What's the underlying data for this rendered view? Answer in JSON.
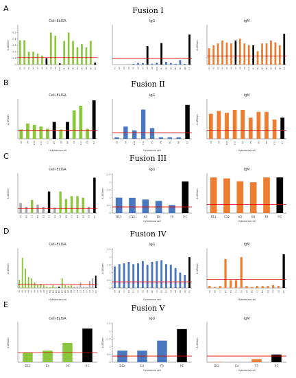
{
  "colors": {
    "green": "#8cc63e",
    "blue": "#4a78c0",
    "orange": "#ed7d31",
    "black": "#000000",
    "gray": "#a6a6a6",
    "cutoff": "#e00000"
  },
  "rows": [
    {
      "letter": "A",
      "title": "Fusion I"
    },
    {
      "letter": "B",
      "title": "Fusion II"
    },
    {
      "letter": "C",
      "title": "Fusion III"
    },
    {
      "letter": "D",
      "title": "Fusion IV"
    },
    {
      "letter": "E",
      "title": "Fusion V"
    }
  ],
  "chart_data": [
    {
      "type": "bar",
      "row": 0,
      "col": 0,
      "title": "Cell-ELISA",
      "xlabel": "",
      "ylabel": "A 490nm",
      "ylim": [
        0,
        0.6
      ],
      "yticks": [
        0,
        0.1,
        0.2,
        0.3,
        0.4,
        0.5
      ],
      "cutoff": 0.11,
      "categories": [
        "A1",
        "A2",
        "A3",
        "A4",
        "A5",
        "A6",
        "A7",
        "A8",
        "A9",
        "A10",
        "B1",
        "B2",
        "B3",
        "B4",
        "B5",
        "B6",
        "B7",
        "P.C"
      ],
      "values": [
        0.38,
        0.38,
        0.2,
        0.2,
        0.17,
        0.14,
        0.1,
        0.5,
        0.45,
        0.02,
        0.37,
        0.5,
        0.37,
        0.27,
        0.32,
        0.27,
        0.37,
        0.03
      ],
      "colors": [
        "green",
        "green",
        "green",
        "green",
        "green",
        "green",
        "black",
        "green",
        "green",
        "black",
        "green",
        "green",
        "green",
        "green",
        "green",
        "green",
        "green",
        "black"
      ]
    },
    {
      "type": "bar",
      "row": 0,
      "col": 1,
      "title": "IgG",
      "xlabel": "",
      "ylabel": "",
      "ylim": [
        0,
        2.5
      ],
      "yticks": [],
      "cutoff": 0.4,
      "categories": [
        "A1",
        "A2",
        "A3",
        "A4",
        "A5",
        "A6",
        "A7",
        "A8",
        "A9",
        "A10",
        "B1",
        "B2",
        "B3",
        "B4",
        "B5",
        "B6",
        "P.C"
      ],
      "values": [
        0,
        0,
        0,
        0.02,
        0.05,
        0.1,
        0.1,
        1.2,
        0.06,
        0.12,
        1.4,
        0.18,
        0.1,
        0.05,
        0.3,
        0.05,
        1.95
      ],
      "colors": [
        "blue",
        "blue",
        "blue",
        "blue",
        "blue",
        "blue",
        "blue",
        "black",
        "blue",
        "blue",
        "black",
        "blue",
        "blue",
        "blue",
        "blue",
        "blue",
        "black"
      ]
    },
    {
      "type": "bar",
      "row": 0,
      "col": 2,
      "title": "IgM",
      "xlabel": "",
      "ylabel": "A 490nm",
      "ylim": [
        0,
        0.4
      ],
      "yticks": [],
      "cutoff": 0.09,
      "categories": [
        "A1",
        "A2",
        "A3",
        "A4",
        "A5",
        "A6",
        "A7",
        "A8",
        "A9",
        "A10",
        "B1",
        "B2",
        "B3",
        "B4",
        "B5",
        "B6",
        "B7",
        "P.C"
      ],
      "values": [
        0.17,
        0.2,
        0.22,
        0.25,
        0.23,
        0.22,
        0.25,
        0.27,
        0.22,
        0.2,
        0.2,
        0.14,
        0.22,
        0.22,
        0.25,
        0.23,
        0.2,
        0.32
      ],
      "colors": [
        "orange",
        "orange",
        "orange",
        "orange",
        "orange",
        "orange",
        "black",
        "orange",
        "orange",
        "orange",
        "black",
        "orange",
        "orange",
        "orange",
        "orange",
        "orange",
        "orange",
        "black"
      ]
    },
    {
      "type": "bar",
      "row": 1,
      "col": 0,
      "title": "Cell-ELISA",
      "xlabel": "Hybridoma cell",
      "ylabel": "A 490nm",
      "ylim": [
        0,
        0.5
      ],
      "yticks": [],
      "cutoff": 0.11,
      "categories": [
        "A6",
        "A9",
        "B10",
        "E11",
        "F1",
        "P.C",
        "A6",
        "B4",
        "C9",
        "E11",
        "F9",
        "P.C"
      ],
      "values": [
        0.12,
        0.2,
        0.18,
        0.16,
        0.13,
        0.22,
        0.12,
        0.22,
        0.37,
        0.43,
        0.13,
        0.52
      ],
      "colors": [
        "green",
        "green",
        "green",
        "green",
        "green",
        "black",
        "green",
        "black",
        "green",
        "green",
        "green",
        "black"
      ]
    },
    {
      "type": "bar",
      "row": 1,
      "col": 1,
      "title": "IgG",
      "xlabel": "Hybridoma cell",
      "ylabel": "",
      "ylim": [
        0,
        2.5
      ],
      "yticks": [],
      "cutoff": 0.4,
      "categories": [
        "A6",
        "A9",
        "B10",
        "E11",
        "F1",
        "F9",
        "H1",
        "H9",
        "P.C"
      ],
      "values": [
        0.1,
        0.8,
        0.55,
        1.9,
        0.7,
        0.1,
        0.1,
        0.1,
        2.2
      ],
      "colors": [
        "blue",
        "blue",
        "blue",
        "blue",
        "blue",
        "blue",
        "blue",
        "blue",
        "black"
      ]
    },
    {
      "type": "bar",
      "row": 1,
      "col": 2,
      "title": "IgM",
      "xlabel": "Hybridoma cell",
      "ylabel": "A 490nm",
      "ylim": [
        0,
        0.4
      ],
      "yticks": [],
      "cutoff": 0.09,
      "categories": [
        "A6",
        "A9",
        "B10",
        "E11",
        "F1",
        "F9",
        "H1",
        "H9",
        "E11",
        "P.C"
      ],
      "values": [
        0.26,
        0.29,
        0.27,
        0.3,
        0.3,
        0.22,
        0.28,
        0.28,
        0.2,
        0.22
      ],
      "colors": [
        "orange",
        "orange",
        "orange",
        "orange",
        "orange",
        "orange",
        "orange",
        "orange",
        "orange",
        "black"
      ]
    },
    {
      "type": "bar",
      "row": 2,
      "col": 0,
      "title": "Cell-ELISA",
      "xlabel": "",
      "ylabel": "A 490nm",
      "ylim": [
        0,
        0.5
      ],
      "yticks": [],
      "cutoff": 0.06,
      "categories": [
        "A1",
        "B1",
        "C1",
        "D1",
        "E1",
        "F1",
        "G1",
        "A2",
        "B2",
        "C2",
        "D2",
        "E2",
        "F2",
        "P.C"
      ],
      "values": [
        0.13,
        0.08,
        0.17,
        0.11,
        0.08,
        0.28,
        0.07,
        0.28,
        0.18,
        0.22,
        0.22,
        0.2,
        0.08,
        0.46
      ],
      "colors": [
        "gray",
        "gray",
        "green",
        "gray",
        "gray",
        "black",
        "gray",
        "green",
        "green",
        "green",
        "green",
        "green",
        "gray",
        "black"
      ]
    },
    {
      "type": "bar",
      "row": 2,
      "col": 1,
      "title": "IgG",
      "xlabel": "Hybridoma cell",
      "ylabel": "A 490nm",
      "ylim": [
        0,
        2.5
      ],
      "yticks": [
        0,
        0.5,
        1,
        1.5,
        2,
        2.5
      ],
      "cutoff": 0.4,
      "categories": [
        "B11",
        "C12",
        "H3",
        "B4",
        "F9",
        "P.C"
      ],
      "values": [
        1.0,
        0.99,
        0.88,
        0.79,
        0.52,
        2.05
      ],
      "colors": [
        "blue",
        "blue",
        "blue",
        "blue",
        "blue",
        "black"
      ]
    },
    {
      "type": "bar",
      "row": 2,
      "col": 2,
      "title": "IgM",
      "xlabel": "Hybridoma cell",
      "ylabel": "A 490nm",
      "ylim": [
        0,
        0.4
      ],
      "yticks": [],
      "cutoff": 0.09,
      "categories": [
        "B11",
        "C12",
        "H3",
        "B4",
        "F9",
        "P.C"
      ],
      "values": [
        0.37,
        0.36,
        0.33,
        0.32,
        0.37,
        0.37
      ],
      "colors": [
        "orange",
        "orange",
        "orange",
        "orange",
        "orange",
        "black"
      ]
    },
    {
      "type": "bar",
      "row": 3,
      "col": 0,
      "title": "Cell-ELISA",
      "xlabel": "Hybridoma cell",
      "ylabel": "A 490nm",
      "ylim": [
        0,
        1.4
      ],
      "yticks": [],
      "cutoff": 0.12,
      "categories": [
        "A1",
        "A2",
        "A3",
        "A4",
        "A5",
        "A6",
        "A7",
        "A8",
        "A9",
        "A10",
        "B1",
        "B2",
        "B3",
        "B4",
        "B5",
        "B6",
        "B7",
        "B8",
        "C1",
        "C2",
        "C3",
        "C4",
        "C5",
        "C6",
        "C7",
        "P.C"
      ],
      "values": [
        0.3,
        1.1,
        0.7,
        0.4,
        0.35,
        0.2,
        0.1,
        0.15,
        0.1,
        0.05,
        0.03,
        0.1,
        0.02,
        0.05,
        0.35,
        0.1,
        0.08,
        0.1,
        0.05,
        0.05,
        0.2,
        0.05,
        0.03,
        0.25,
        0.35,
        0.45
      ],
      "colors": [
        "green",
        "green",
        "green",
        "green",
        "green",
        "green",
        "green",
        "green",
        "green",
        "green",
        "green",
        "green",
        "green",
        "black",
        "green",
        "green",
        "green",
        "green",
        "gray",
        "gray",
        "gray",
        "gray",
        "gray",
        "gray",
        "gray",
        "black"
      ]
    },
    {
      "type": "bar",
      "row": 3,
      "col": 1,
      "title": "IgG",
      "xlabel": "Hybridoma cell",
      "ylabel": "A 490nm",
      "ylim": [
        0,
        2.5
      ],
      "yticks": [
        0,
        0.5,
        1,
        1.5,
        2,
        2.5
      ],
      "cutoff": 0.4,
      "categories": [
        "A1",
        "B1",
        "C1",
        "D1",
        "E1",
        "F1",
        "G1",
        "A2",
        "B2",
        "C2",
        "D2",
        "E2",
        "F2",
        "G2",
        "H2",
        "A3",
        "P.C"
      ],
      "values": [
        1.4,
        1.55,
        1.6,
        1.7,
        1.55,
        1.6,
        1.75,
        1.5,
        1.7,
        1.75,
        1.8,
        1.55,
        1.5,
        1.3,
        1.0,
        0.85,
        2.0
      ],
      "colors": [
        "blue",
        "blue",
        "blue",
        "blue",
        "blue",
        "blue",
        "blue",
        "blue",
        "blue",
        "blue",
        "blue",
        "blue",
        "blue",
        "blue",
        "blue",
        "blue",
        "black"
      ]
    },
    {
      "type": "bar",
      "row": 3,
      "col": 2,
      "title": "IgM",
      "xlabel": "Hybridoma cell",
      "ylabel": "A 490nm",
      "ylim": [
        0,
        0.4
      ],
      "yticks": [],
      "cutoff": 0.09,
      "categories": [
        "A1",
        "B1",
        "C1",
        "D1",
        "E1",
        "F1",
        "G1",
        "A2",
        "B2",
        "C2",
        "D2",
        "E2",
        "F2",
        "G2",
        "P.C"
      ],
      "values": [
        0.02,
        0.01,
        0.02,
        0.3,
        0.08,
        0.08,
        0.32,
        0.02,
        0.01,
        0.02,
        0.02,
        0.02,
        0.03,
        0.02,
        0.35
      ],
      "colors": [
        "orange",
        "orange",
        "orange",
        "orange",
        "orange",
        "orange",
        "orange",
        "orange",
        "orange",
        "orange",
        "orange",
        "orange",
        "orange",
        "orange",
        "black"
      ]
    },
    {
      "type": "bar",
      "row": 4,
      "col": 0,
      "title": "Cell-ELISA",
      "xlabel": "",
      "ylabel": "A 490nm",
      "ylim": [
        0,
        0.8
      ],
      "yticks": [],
      "cutoff": 0.2,
      "categories": [
        "D12",
        "E4",
        "F9",
        "P.C"
      ],
      "values": [
        0.2,
        0.24,
        0.4,
        0.7
      ],
      "colors": [
        "green",
        "green",
        "green",
        "black"
      ]
    },
    {
      "type": "bar",
      "row": 4,
      "col": 1,
      "title": "IgG",
      "xlabel": "Hybridoma cell",
      "ylabel": "A 490nm",
      "ylim": [
        0,
        2.5
      ],
      "yticks": [
        0,
        0.5,
        1,
        1.5,
        2,
        2.5
      ],
      "cutoff": 0.4,
      "categories": [
        "D12",
        "E4",
        "F9",
        "P.C"
      ],
      "values": [
        0.75,
        0.75,
        1.4,
        2.15
      ],
      "colors": [
        "blue",
        "blue",
        "blue",
        "black"
      ]
    },
    {
      "type": "bar",
      "row": 4,
      "col": 2,
      "title": "IgM",
      "xlabel": "Hybridoma cell",
      "ylabel": "A 490nm",
      "ylim": [
        0,
        2.5
      ],
      "yticks": [],
      "cutoff": 0.4,
      "categories": [
        "D12",
        "E4",
        "F9",
        "P.C"
      ],
      "values": [
        0.02,
        0.0,
        0.2,
        0.5
      ],
      "colors": [
        "orange",
        "orange",
        "orange",
        "black"
      ]
    }
  ]
}
